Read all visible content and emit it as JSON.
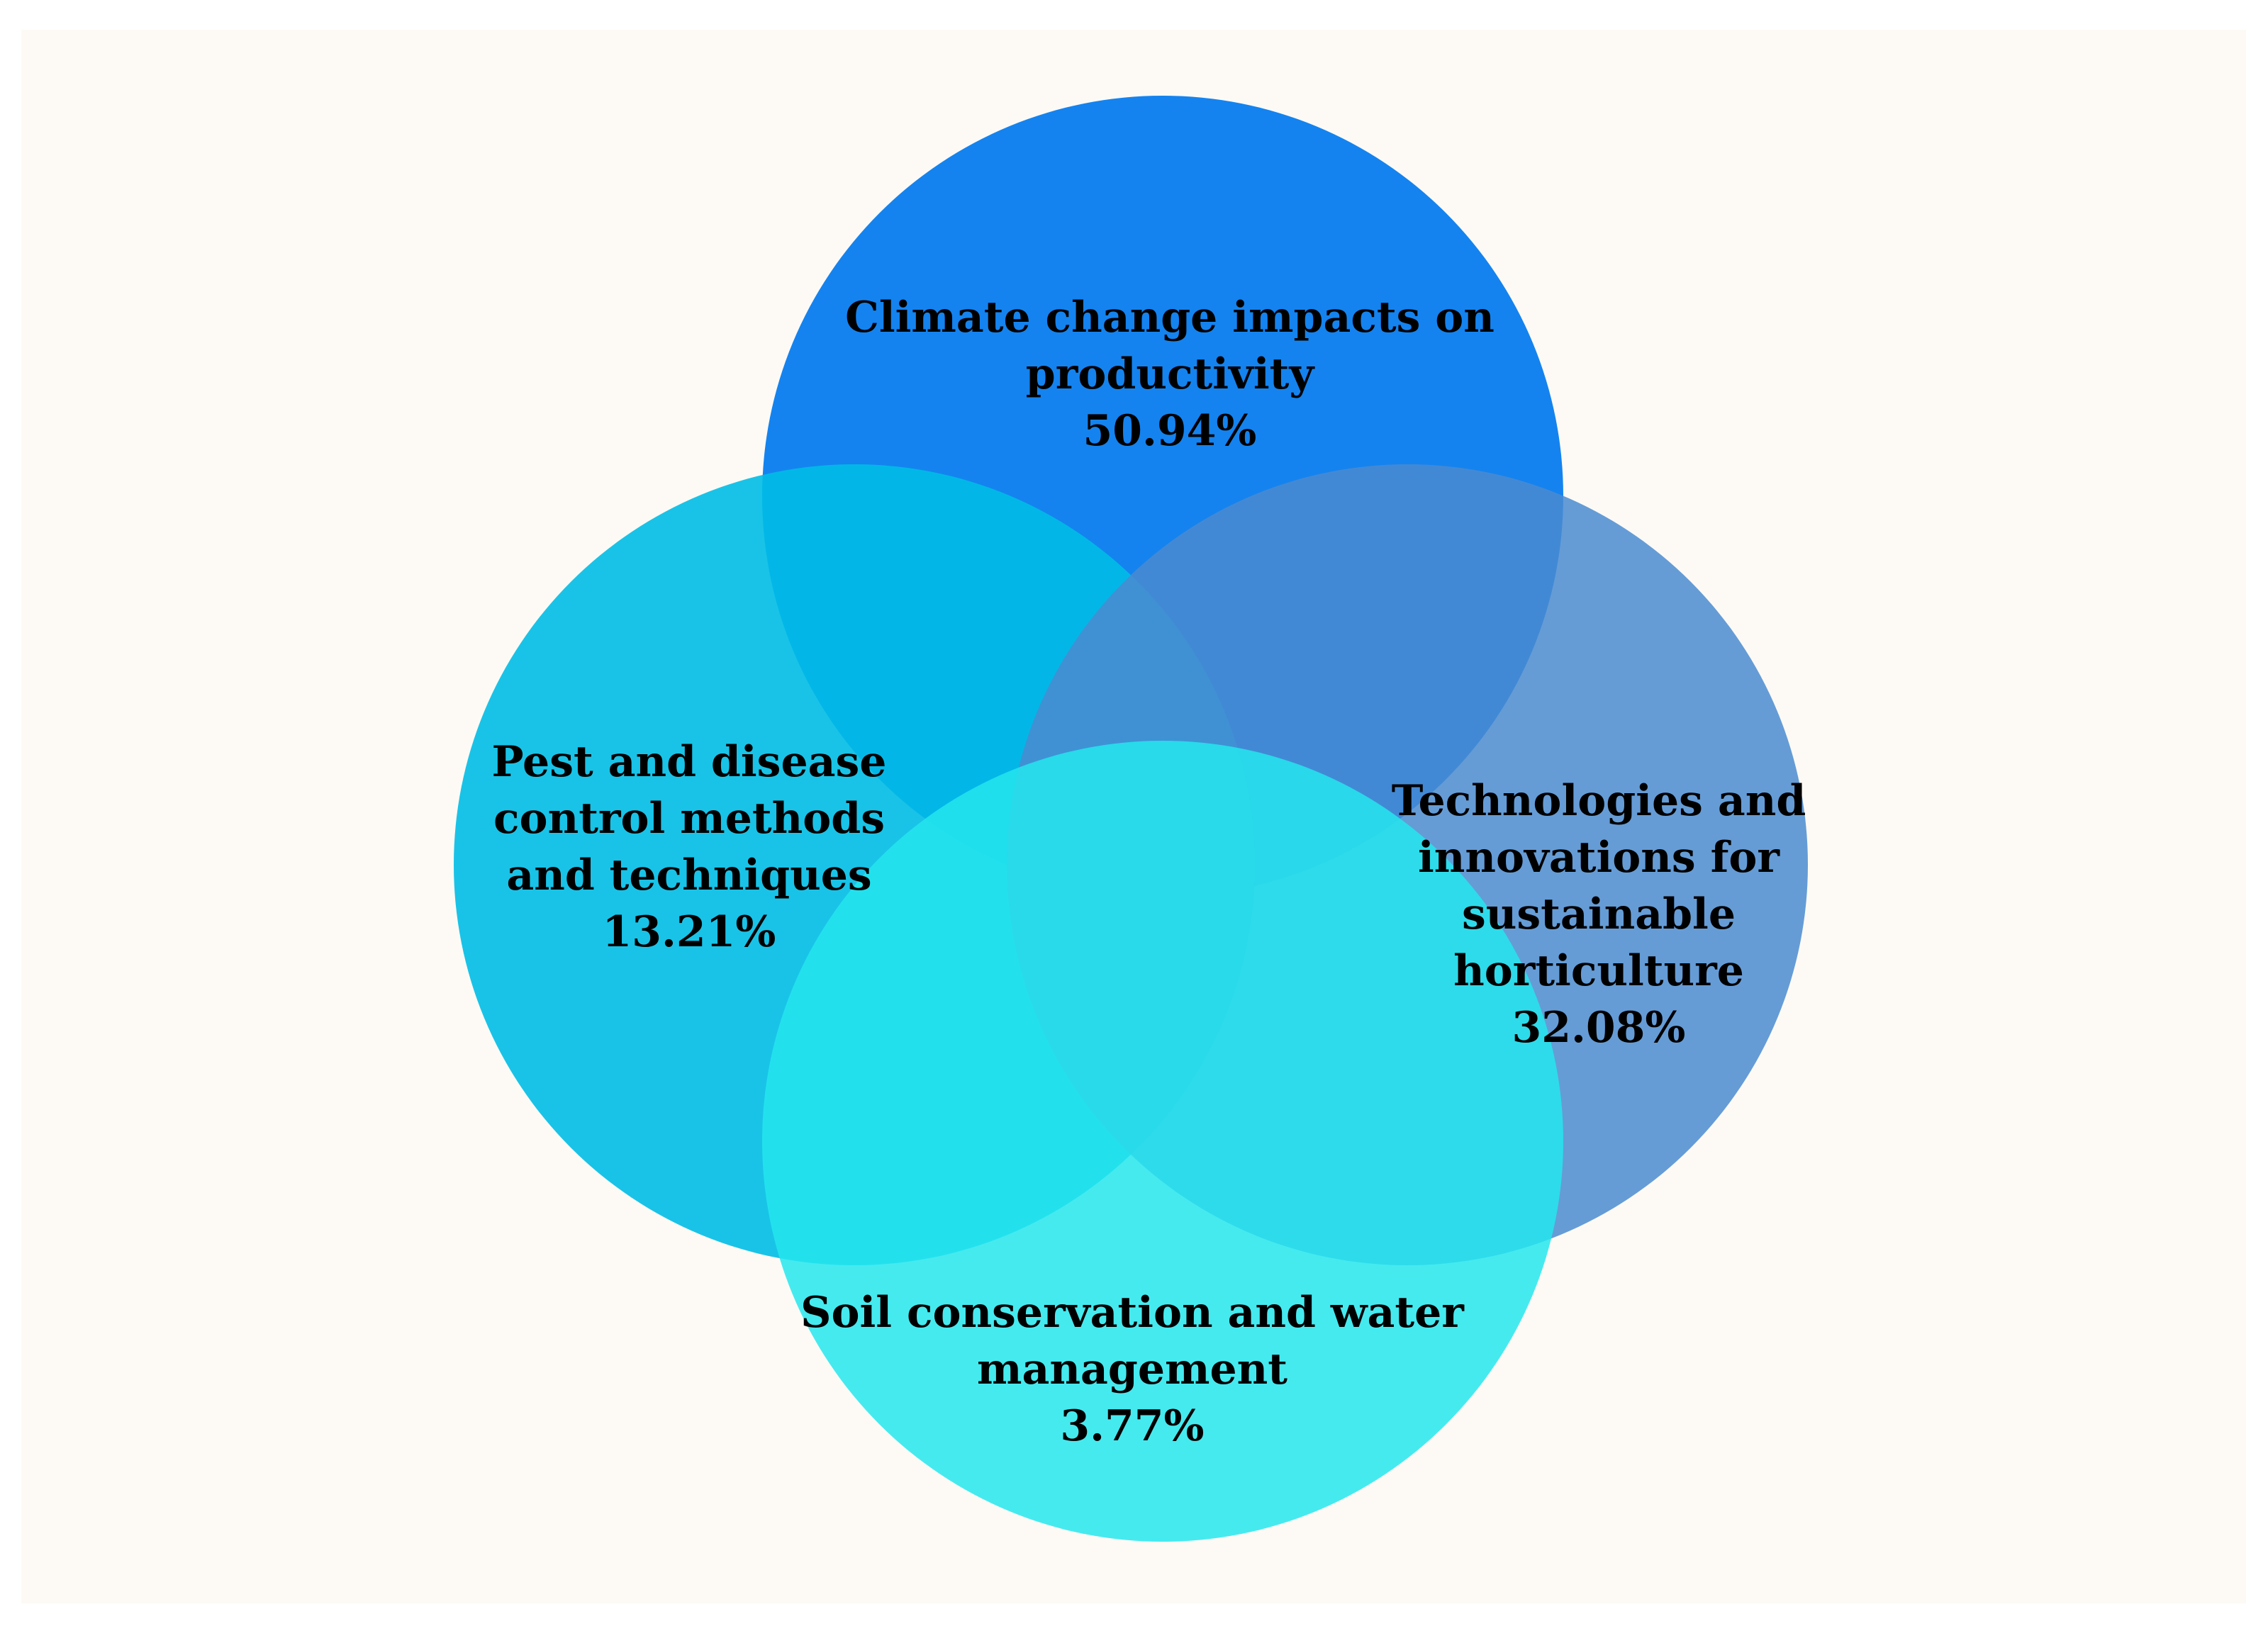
{
  "background_color": "#fdfaf5",
  "circles": [
    {
      "id": "climate",
      "color": "#0078ee",
      "lines": [
        "Climate change impacts on",
        "productivity"
      ],
      "percent": "50.94%"
    },
    {
      "id": "pest",
      "color": "#00bde6",
      "lines": [
        "Pest and disease",
        "control methods",
        "and techniques"
      ],
      "percent": "13.21%"
    },
    {
      "id": "technology",
      "color": "#4a8bd0",
      "lines": [
        "Technologies and",
        "innovations for",
        "sustainable",
        "horticulture"
      ],
      "percent": "32.08%"
    },
    {
      "id": "soil",
      "color": "#25e6ed",
      "lines": [
        "Soil conservation and water",
        "management"
      ],
      "percent": "3.77%"
    }
  ]
}
